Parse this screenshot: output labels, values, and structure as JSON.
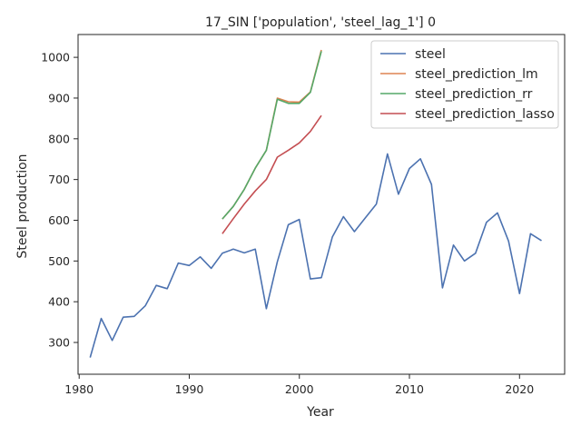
{
  "chart_data": {
    "type": "line",
    "title": "17_SIN ['population', 'steel_lag_1'] 0",
    "xlabel": "Year",
    "ylabel": "Steel production",
    "xlim": [
      1979.9,
      2024.1
    ],
    "ylim": [
      222,
      1056
    ],
    "xticks": [
      1980,
      1990,
      2000,
      2010,
      2020
    ],
    "yticks": [
      300,
      400,
      500,
      600,
      700,
      800,
      900,
      1000
    ],
    "grid": false,
    "legend_position": "top-right",
    "series": [
      {
        "name": "steel",
        "color": "#4c72b0",
        "x": [
          1981,
          1982,
          1983,
          1984,
          1985,
          1986,
          1987,
          1988,
          1989,
          1990,
          1991,
          1992,
          1993,
          1994,
          1995,
          1996,
          1997,
          1998,
          1999,
          2000,
          2001,
          2002,
          2003,
          2004,
          2005,
          2006,
          2007,
          2008,
          2009,
          2010,
          2011,
          2012,
          2013,
          2014,
          2015,
          2016,
          2017,
          2018,
          2019,
          2020,
          2021,
          2022
        ],
        "y": [
          263,
          359,
          305,
          362,
          364,
          390,
          440,
          432,
          495,
          489,
          510,
          482,
          519,
          529,
          520,
          529,
          383,
          498,
          589,
          602,
          456,
          459,
          559,
          609,
          572,
          606,
          640,
          763,
          664,
          727,
          751,
          688,
          434,
          539,
          500,
          519,
          595,
          618,
          549,
          420,
          567,
          550
        ]
      },
      {
        "name": "steel_prediction_lm",
        "color": "#dd8452",
        "x": [
          1993,
          1994,
          1995,
          1996,
          1997,
          1998,
          1999,
          2000,
          2001,
          2002
        ],
        "y": [
          603,
          634,
          676,
          728,
          772,
          900,
          891,
          890,
          915,
          1018
        ]
      },
      {
        "name": "steel_prediction_rr",
        "color": "#55a868",
        "x": [
          1993,
          1994,
          1995,
          1996,
          1997,
          1998,
          1999,
          2000,
          2001,
          2002
        ],
        "y": [
          603,
          634,
          676,
          728,
          772,
          897,
          887,
          887,
          914,
          1015
        ]
      },
      {
        "name": "steel_prediction_lasso",
        "color": "#c44e52",
        "x": [
          1993,
          1994,
          1995,
          1996,
          1997,
          1998,
          1999,
          2000,
          2001,
          2002
        ],
        "y": [
          567,
          604,
          640,
          672,
          700,
          755,
          772,
          790,
          818,
          857
        ]
      }
    ]
  }
}
